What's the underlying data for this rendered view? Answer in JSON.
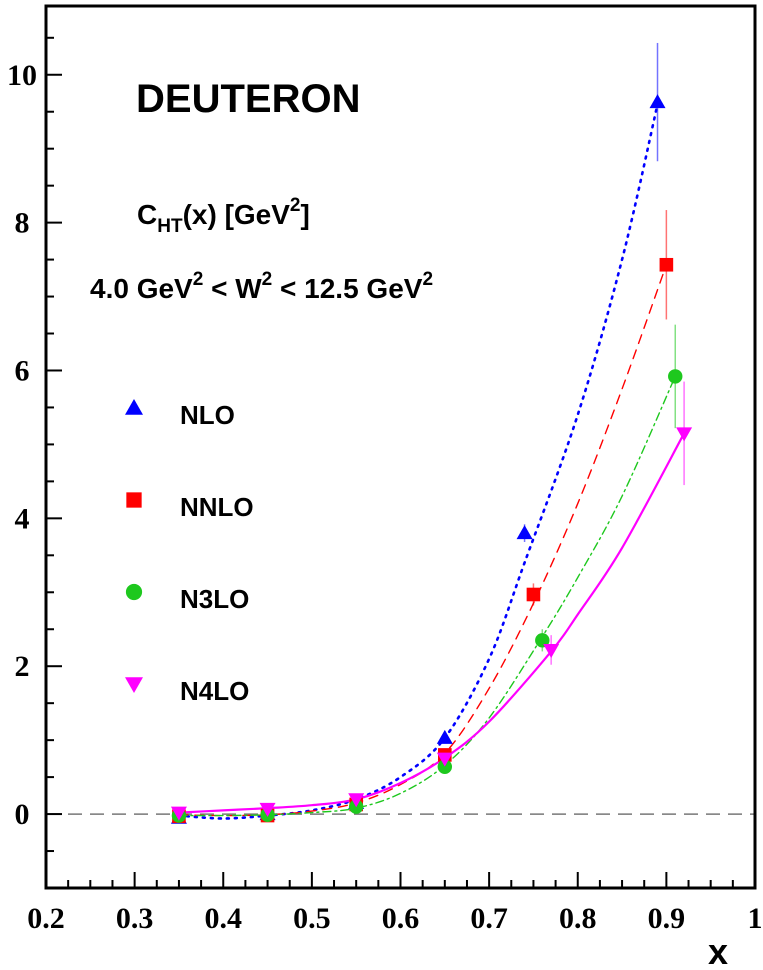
{
  "chart_data": {
    "type": "scatter",
    "title": "DEUTERON",
    "subtitle": "C_HT(x) [GeV^2]",
    "annotation": "4.0 GeV^2 < W^2 < 12.5 GeV^2",
    "xlabel": "x",
    "ylabel": "",
    "xlim": [
      0.2,
      1.0
    ],
    "ylim": [
      -1.0,
      10.93
    ],
    "x_ticks": [
      "0.2",
      "0.3",
      "0.4",
      "0.5",
      "0.6",
      "0.7",
      "0.8",
      "0.9",
      "1"
    ],
    "y_ticks": [
      "0",
      "2",
      "4",
      "6",
      "8",
      "10"
    ],
    "grid": false,
    "zero_line": {
      "y": 0,
      "style": "dashed",
      "color": "#777777"
    },
    "legend_position": "left-inside",
    "series": [
      {
        "name": "NLO",
        "marker": "triangle-up",
        "color": "#0000ff",
        "line_style": "dotted",
        "points": [
          {
            "x": 0.35,
            "y": -0.05,
            "err": 0.03
          },
          {
            "x": 0.45,
            "y": 0.0,
            "err": 0.03
          },
          {
            "x": 0.55,
            "y": 0.15,
            "err": 0.03
          },
          {
            "x": 0.65,
            "y": 1.03,
            "err": 0.05
          },
          {
            "x": 0.74,
            "y": 3.8,
            "err": 0.12
          },
          {
            "x": 0.89,
            "y": 9.63,
            "err": 0.8
          }
        ],
        "curve": [
          [
            0.35,
            -0.02
          ],
          [
            0.4,
            -0.06
          ],
          [
            0.45,
            -0.02
          ],
          [
            0.5,
            0.05
          ],
          [
            0.55,
            0.2
          ],
          [
            0.6,
            0.5
          ],
          [
            0.65,
            1.03
          ],
          [
            0.7,
            2.1
          ],
          [
            0.74,
            3.4
          ],
          [
            0.8,
            5.4
          ],
          [
            0.85,
            7.5
          ],
          [
            0.89,
            9.6
          ]
        ]
      },
      {
        "name": "NNLO",
        "marker": "square",
        "color": "#ff0000",
        "line_style": "dashed",
        "points": [
          {
            "x": 0.35,
            "y": -0.03,
            "err": 0.03
          },
          {
            "x": 0.45,
            "y": -0.02,
            "err": 0.03
          },
          {
            "x": 0.55,
            "y": 0.13,
            "err": 0.03
          },
          {
            "x": 0.65,
            "y": 0.8,
            "err": 0.05
          },
          {
            "x": 0.75,
            "y": 2.97,
            "err": 0.15
          },
          {
            "x": 0.9,
            "y": 7.43,
            "err": 0.74
          }
        ],
        "curve": [
          [
            0.35,
            -0.01
          ],
          [
            0.4,
            -0.02
          ],
          [
            0.45,
            -0.01
          ],
          [
            0.5,
            0.04
          ],
          [
            0.55,
            0.15
          ],
          [
            0.6,
            0.4
          ],
          [
            0.65,
            0.82
          ],
          [
            0.7,
            1.7
          ],
          [
            0.75,
            2.85
          ],
          [
            0.8,
            4.2
          ],
          [
            0.85,
            5.75
          ],
          [
            0.9,
            7.43
          ]
        ]
      },
      {
        "name": "N3LO",
        "marker": "circle",
        "color": "#1ec81e",
        "line_style": "dash-dot",
        "points": [
          {
            "x": 0.35,
            "y": -0.02,
            "err": 0.03
          },
          {
            "x": 0.45,
            "y": -0.01,
            "err": 0.03
          },
          {
            "x": 0.55,
            "y": 0.1,
            "err": 0.03
          },
          {
            "x": 0.65,
            "y": 0.64,
            "err": 0.05
          },
          {
            "x": 0.76,
            "y": 2.35,
            "err": 0.15
          },
          {
            "x": 0.91,
            "y": 5.92,
            "err": 0.7
          }
        ],
        "curve": [
          [
            0.35,
            -0.02
          ],
          [
            0.4,
            -0.02
          ],
          [
            0.45,
            -0.01
          ],
          [
            0.5,
            0.02
          ],
          [
            0.55,
            0.08
          ],
          [
            0.6,
            0.28
          ],
          [
            0.65,
            0.66
          ],
          [
            0.7,
            1.3
          ],
          [
            0.76,
            2.4
          ],
          [
            0.8,
            3.2
          ],
          [
            0.85,
            4.3
          ],
          [
            0.91,
            5.92
          ]
        ]
      },
      {
        "name": "N4LO",
        "marker": "triangle-down",
        "color": "#ff00ff",
        "line_style": "solid",
        "points": [
          {
            "x": 0.35,
            "y": 0.02,
            "err": 0.03
          },
          {
            "x": 0.45,
            "y": 0.07,
            "err": 0.03
          },
          {
            "x": 0.55,
            "y": 0.2,
            "err": 0.03
          },
          {
            "x": 0.65,
            "y": 0.75,
            "err": 0.05
          },
          {
            "x": 0.77,
            "y": 2.22,
            "err": 0.2
          },
          {
            "x": 0.92,
            "y": 5.15,
            "err": 0.7
          }
        ],
        "curve": [
          [
            0.35,
            0.02
          ],
          [
            0.4,
            0.05
          ],
          [
            0.45,
            0.08
          ],
          [
            0.5,
            0.12
          ],
          [
            0.55,
            0.2
          ],
          [
            0.6,
            0.42
          ],
          [
            0.65,
            0.76
          ],
          [
            0.7,
            1.25
          ],
          [
            0.77,
            2.2
          ],
          [
            0.8,
            2.7
          ],
          [
            0.85,
            3.6
          ],
          [
            0.92,
            5.15
          ]
        ]
      }
    ]
  },
  "labels": {
    "title": "DEUTERON",
    "subtitle_main": "C",
    "subtitle_sub": "HT",
    "subtitle_rest": "(x) [GeV",
    "subtitle_sup": "2",
    "subtitle_close": "]",
    "range_a": "4.0 GeV",
    "range_sup1": "2",
    "range_b": " < W",
    "range_sup2": "2",
    "range_c": " < 12.5 GeV",
    "range_sup3": "2",
    "xlabel": "x"
  }
}
